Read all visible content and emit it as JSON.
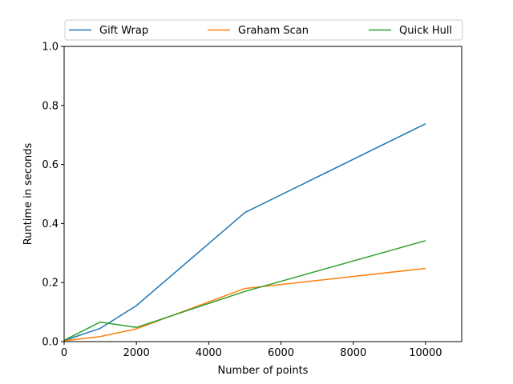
{
  "chart_data": {
    "type": "line",
    "title": "",
    "xlabel": "Number of points",
    "ylabel": "Runtime in seconds",
    "xlim": [
      0,
      11000
    ],
    "ylim": [
      0,
      1.0
    ],
    "x_ticks": [
      0,
      2000,
      4000,
      6000,
      8000,
      10000
    ],
    "y_ticks": [
      0.0,
      0.2,
      0.4,
      0.6,
      0.8,
      1.0
    ],
    "x_tick_labels": [
      "0",
      "2000",
      "4000",
      "6000",
      "8000",
      "10000"
    ],
    "y_tick_labels": [
      "0.0",
      "0.2",
      "0.4",
      "0.6",
      "0.8",
      "1.0"
    ],
    "grid": false,
    "legend_position": "top, horizontal",
    "x": [
      10,
      1000,
      2000,
      5000,
      10000
    ],
    "series": [
      {
        "name": "Gift Wrap",
        "color": "#1f77b4",
        "values": [
          0.004,
          0.045,
          0.122,
          0.437,
          0.738
        ]
      },
      {
        "name": "Graham Scan",
        "color": "#ff7f0e",
        "values": [
          0.003,
          0.017,
          0.043,
          0.18,
          0.248
        ]
      },
      {
        "name": "Quick Hull",
        "color": "#2ca02c",
        "values": [
          0.005,
          0.066,
          0.048,
          0.17,
          0.342
        ]
      }
    ]
  }
}
